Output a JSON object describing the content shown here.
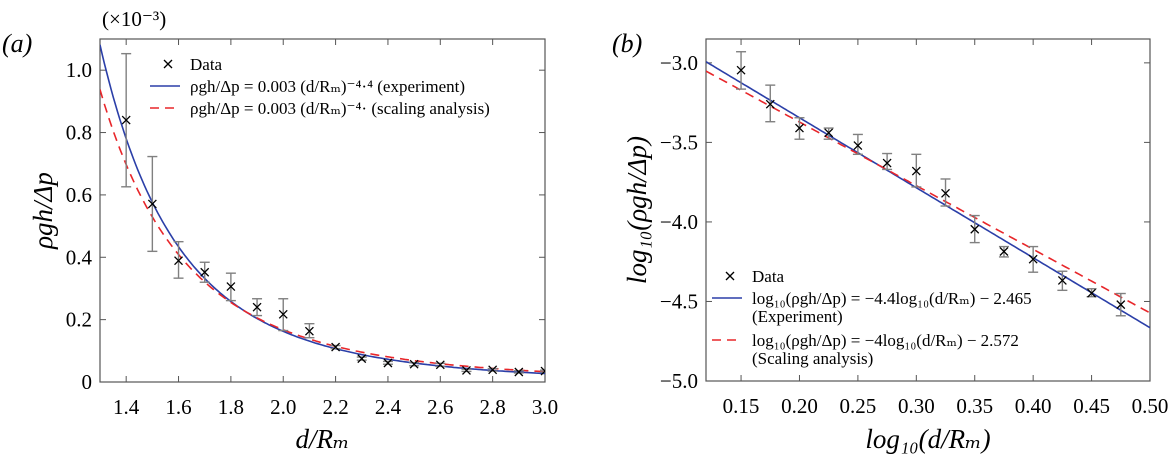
{
  "chart_data": [
    {
      "panel_label": "(a)",
      "type": "scatter",
      "multiplier": "(×10⁻³)",
      "xlabel": "d/Rₘ",
      "ylabel": "ρgh/Δp",
      "xlim": [
        1.3,
        3.0
      ],
      "ylim": [
        0,
        1.1
      ],
      "xticks": [
        "1.4",
        "1.6",
        "1.8",
        "2.0",
        "2.2",
        "2.4",
        "2.6",
        "2.8",
        "3.0"
      ],
      "yticks": [
        "0",
        "0.2",
        "0.4",
        "0.6",
        "0.8",
        "1.0"
      ],
      "grid": false,
      "legend_position": "top-center",
      "series": [
        {
          "name": "Data",
          "kind": "points",
          "marker": "x",
          "color": "#000000",
          "errorbar_color": "#808080",
          "x": [
            1.4,
            1.5,
            1.6,
            1.7,
            1.8,
            1.9,
            2.0,
            2.1,
            2.2,
            2.3,
            2.4,
            2.5,
            2.6,
            2.7,
            2.8,
            2.9,
            3.0
          ],
          "y": [
            0.84,
            0.571,
            0.389,
            0.352,
            0.306,
            0.24,
            0.217,
            0.163,
            0.112,
            0.075,
            0.061,
            0.057,
            0.055,
            0.037,
            0.039,
            0.032,
            0.035
          ],
          "err_low": [
            0.626,
            0.419,
            0.333,
            0.32,
            0.261,
            0.213,
            0.165,
            0.142,
            0.107,
            0.07,
            0.057,
            0.052,
            0.05,
            0.034,
            0.035,
            0.029,
            0.032
          ],
          "err_high": [
            1.053,
            0.723,
            0.45,
            0.384,
            0.349,
            0.267,
            0.267,
            0.187,
            0.117,
            0.08,
            0.066,
            0.062,
            0.06,
            0.041,
            0.043,
            0.036,
            0.038
          ]
        },
        {
          "name": "ρgh/Δp = 0.003 (d/Rₘ)⁻⁴·⁴ (experiment)",
          "kind": "power",
          "coef": 3.43,
          "exponent": -4.4,
          "color": "#2b3fa8",
          "dash": false
        },
        {
          "name": "ρgh/Δp = 0.003 (d/Rₘ)⁻⁴· (scaling analysis)",
          "kind": "power",
          "coef": 2.679,
          "exponent": -4,
          "color": "#e8262a",
          "dash": true
        }
      ]
    },
    {
      "panel_label": "(b)",
      "type": "scatter",
      "xlabel": "log₁₀(d/Rₘ)",
      "ylabel": "log₁₀(ρgh/Δp)",
      "xlim": [
        0.12,
        0.5
      ],
      "ylim": [
        -5.0,
        -2.85
      ],
      "xticks": [
        "0.15",
        "0.20",
        "0.25",
        "0.30",
        "0.35",
        "0.40",
        "0.45",
        "0.50"
      ],
      "yticks": [
        "−5.0",
        "−4.5",
        "−4.0",
        "−3.5",
        "−3.0"
      ],
      "grid": false,
      "legend_position": "bottom-left",
      "series": [
        {
          "name": "Data",
          "kind": "points",
          "marker": "x",
          "color": "#000000",
          "errorbar_color": "#808080",
          "x": [
            0.15,
            0.175,
            0.2,
            0.225,
            0.25,
            0.275,
            0.3,
            0.325,
            0.35,
            0.375,
            0.4,
            0.425,
            0.45,
            0.475
          ],
          "y": [
            -3.046,
            -3.26,
            -3.41,
            -3.44,
            -3.52,
            -3.63,
            -3.68,
            -3.82,
            -4.046,
            -4.186,
            -4.234,
            -4.368,
            -4.448,
            -4.52
          ],
          "err_low": [
            -3.165,
            -3.37,
            -3.48,
            -3.48,
            -3.575,
            -3.67,
            -3.78,
            -3.9,
            -4.13,
            -4.22,
            -4.316,
            -4.43,
            -4.47,
            -4.59
          ],
          "err_high": [
            -2.93,
            -3.14,
            -3.345,
            -3.41,
            -3.45,
            -3.57,
            -3.575,
            -3.73,
            -3.96,
            -4.155,
            -4.155,
            -4.31,
            -4.42,
            -4.45
          ]
        },
        {
          "name": "log₁₀(ρgh/Δp) = −4.4log₁₀(d/Rₘ) − 2.465",
          "name_line2": "(Experiment)",
          "kind": "linear",
          "slope": -4.4,
          "intercept": -2.465,
          "color": "#2b3fa8",
          "dash": false
        },
        {
          "name": "log₁₀(ρgh/Δp) = −4log₁₀(d/Rₘ) − 2.572",
          "name_line2": "(Scaling analysis)",
          "kind": "linear",
          "slope": -4,
          "intercept": -2.572,
          "color": "#e8262a",
          "dash": true
        }
      ]
    }
  ]
}
